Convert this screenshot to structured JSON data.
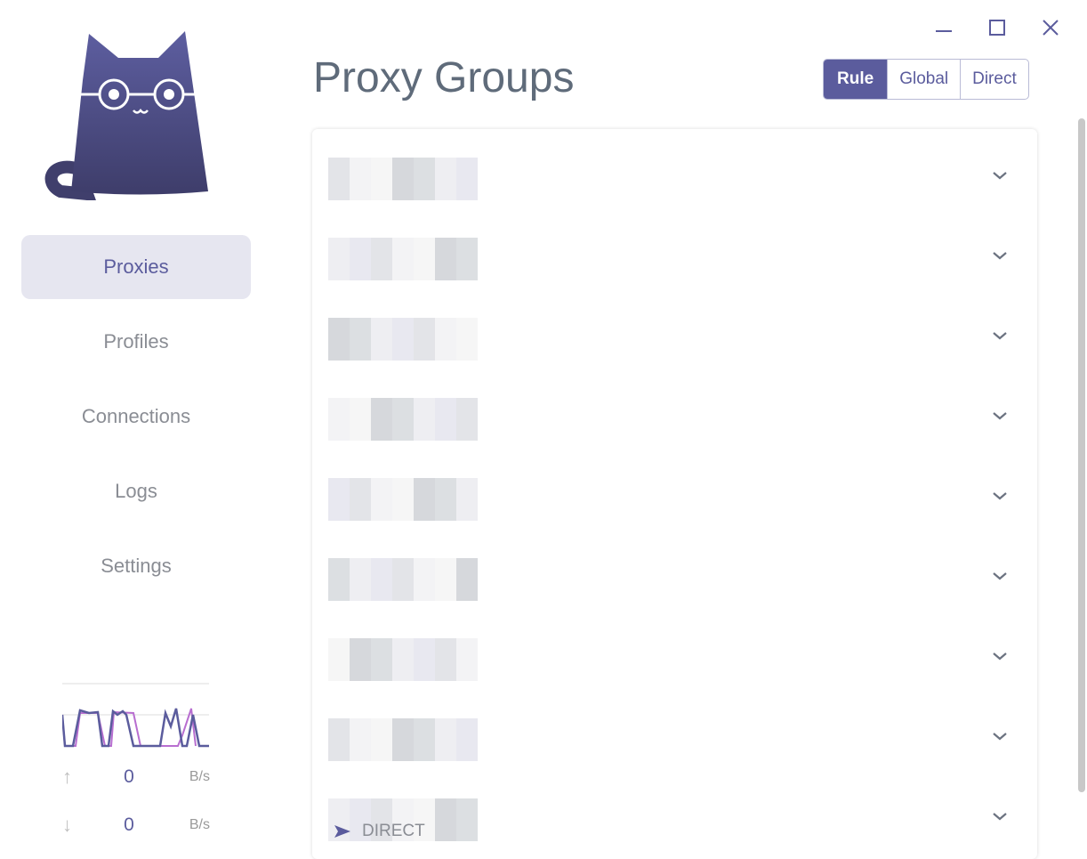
{
  "window": {
    "controls": [
      "minimize-icon",
      "maximize-icon",
      "close-icon"
    ]
  },
  "sidebar": {
    "items": [
      {
        "label": "Proxies",
        "active": true
      },
      {
        "label": "Profiles"
      },
      {
        "label": "Connections"
      },
      {
        "label": "Logs"
      },
      {
        "label": "Settings"
      }
    ]
  },
  "traffic": {
    "up": {
      "value": "0",
      "unit": "B/s"
    },
    "down": {
      "value": "0",
      "unit": "B/s"
    }
  },
  "header": {
    "title": "Proxy Groups",
    "modes": [
      {
        "label": "Rule",
        "selected": true
      },
      {
        "label": "Global"
      },
      {
        "label": "Direct"
      }
    ]
  },
  "groups": {
    "count_rows": 9,
    "last_now": "DIRECT"
  },
  "colors": {
    "accent": "#5b5c9d",
    "secondary": "#b86ed0"
  }
}
